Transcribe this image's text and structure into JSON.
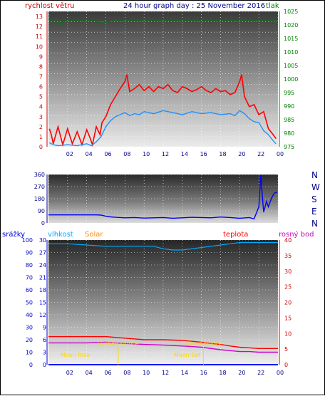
{
  "chart_data": [
    {
      "type": "line",
      "title": "24 hour graph day : 25 November 2016",
      "left_axis_label": "rychlost větru",
      "right_axis_label": "tlak",
      "x_ticks": [
        "02",
        "04",
        "06",
        "08",
        "10",
        "12",
        "14",
        "16",
        "18",
        "20",
        "22",
        "00"
      ],
      "left_ticks": [
        "0",
        "1",
        "2",
        "3",
        "4",
        "5",
        "6",
        "7",
        "8",
        "9",
        "10",
        "11",
        "12",
        "13"
      ],
      "right_ticks": [
        "975",
        "980",
        "985",
        "990",
        "995",
        "1000",
        "1005",
        "1010",
        "1015",
        "1020",
        "1025"
      ],
      "ylim_left": [
        0,
        13.5
      ],
      "ylim_right": [
        975,
        1025
      ],
      "colors": {
        "gust": "#ff0000",
        "avg": "#1e90ff",
        "pressure": "#008000",
        "left_axis": "#cc0000",
        "right_axis": "#008000",
        "title": "#00008b"
      },
      "series": [
        {
          "hour": [
            0.1,
            0.3,
            0.5,
            1.0,
            1.5,
            2.0,
            2.5,
            3.0,
            3.5,
            4.0,
            4.3,
            4.6,
            5.0,
            5.4,
            5.6,
            6.0,
            6.5,
            7.0,
            7.5,
            8.0,
            8.2,
            8.5,
            9.0,
            9.5,
            10.0,
            10.5,
            11.0,
            11.5,
            12.0,
            12.5,
            13.0,
            13.5,
            14.0,
            14.5,
            15.0,
            15.5,
            16.0,
            16.5,
            17.0,
            17.5,
            18.0,
            18.5,
            19.0,
            19.5,
            20.0,
            20.2,
            20.5,
            21.0,
            21.5,
            22.0,
            22.5,
            23.0,
            23.5,
            23.8
          ],
          "values": [
            1.8,
            1.2,
            0.3,
            2.0,
            0.2,
            1.8,
            0.3,
            1.5,
            0.2,
            1.7,
            1.0,
            0.2,
            2.0,
            1.2,
            2.4,
            3.0,
            4.2,
            5.0,
            5.8,
            6.5,
            7.2,
            5.5,
            5.8,
            6.2,
            5.6,
            6.0,
            5.5,
            6.0,
            5.8,
            6.2,
            5.6,
            5.4,
            6.0,
            5.8,
            5.5,
            5.7,
            6.0,
            5.6,
            5.4,
            5.8,
            5.5,
            5.6,
            5.2,
            5.4,
            6.5,
            7.2,
            5.0,
            4.0,
            4.2,
            3.2,
            3.5,
            1.8,
            1.2,
            0.8
          ]
        },
        {
          "hour": [
            0.1,
            0.5,
            1.0,
            2.0,
            3.0,
            4.0,
            4.5,
            5.0,
            5.5,
            6.0,
            6.5,
            7.0,
            7.5,
            8.0,
            8.5,
            9.0,
            9.5,
            10.0,
            11.0,
            12.0,
            13.0,
            14.0,
            15.0,
            16.0,
            17.0,
            18.0,
            19.0,
            19.5,
            20.0,
            20.5,
            21.0,
            21.5,
            22.0,
            22.5,
            23.0,
            23.5,
            23.8
          ],
          "values": [
            0.4,
            0.2,
            0.1,
            0.2,
            0.1,
            0.3,
            0.1,
            0.5,
            1.0,
            2.0,
            2.6,
            3.0,
            3.2,
            3.4,
            3.1,
            3.3,
            3.2,
            3.5,
            3.3,
            3.6,
            3.4,
            3.2,
            3.5,
            3.3,
            3.4,
            3.2,
            3.3,
            3.1,
            3.6,
            3.3,
            2.8,
            2.5,
            2.4,
            1.6,
            1.2,
            0.6,
            0.3
          ]
        },
        {
          "hour": [
            0,
            1.0,
            1.3,
            1.6,
            2.0,
            3.0,
            4.0,
            5.0,
            5.5,
            6.0,
            7.0,
            8.0,
            9.0,
            10.0,
            11.0,
            12.0,
            13.0,
            14.0,
            15.0,
            16.0,
            17.0,
            18.0,
            19.0,
            20.0,
            21.0,
            22.0,
            23.0,
            24.0
          ],
          "values": [
            1021.5,
            1021.5,
            1020.0,
            1021.5,
            1021.5,
            1021.5,
            1021.5,
            1021.5,
            1020.5,
            1021.0,
            1021.5,
            1021.5,
            1021.5,
            1021.5,
            1021.5,
            1021.5,
            1021.5,
            1021.5,
            1021.5,
            1021.5,
            1021.5,
            1021.5,
            1021.5,
            1021.5,
            1021.5,
            1021.5,
            1021.5,
            1021.5
          ]
        }
      ]
    },
    {
      "type": "line",
      "right_labels": [
        "N",
        "W",
        "S",
        "E",
        "N"
      ],
      "left_ticks": [
        "0",
        "90",
        "180",
        "270",
        "360"
      ],
      "ylim": [
        0,
        360
      ],
      "colors": {
        "direction": "#0000ff",
        "axis": "#00008b"
      },
      "series": [
        {
          "hour": [
            0.0,
            1.0,
            2.0,
            3.0,
            4.0,
            5.0,
            5.5,
            6.0,
            6.5,
            7.0,
            8.0,
            9.0,
            10.0,
            11.0,
            12.0,
            13.0,
            14.0,
            15.0,
            16.0,
            17.0,
            18.0,
            19.0,
            20.0,
            21.0,
            21.5,
            22.0,
            22.2,
            22.5,
            22.8,
            23.0,
            23.3,
            23.6,
            23.9
          ],
          "values": [
            60,
            60,
            60,
            60,
            60,
            60,
            58,
            50,
            45,
            42,
            38,
            40,
            36,
            38,
            40,
            35,
            38,
            42,
            40,
            38,
            44,
            40,
            35,
            40,
            30,
            120,
            355,
            80,
            160,
            120,
            180,
            220,
            230
          ]
        }
      ]
    },
    {
      "type": "line",
      "left_axis_label": "srážky",
      "humidity_label": "vlhkost",
      "solar_label": "Solar",
      "temperature_label": "teplota",
      "dew_label": "rosný bod",
      "left_ticks": [
        "0",
        "10",
        "20",
        "30",
        "40",
        "50",
        "60",
        "70",
        "80",
        "90",
        "100"
      ],
      "inner_ticks": [
        "0",
        "3",
        "6",
        "9",
        "12",
        "15",
        "18",
        "21",
        "24",
        "27",
        "30"
      ],
      "right_ticks": [
        "0",
        "5",
        "10",
        "15",
        "20",
        "25",
        "30",
        "35",
        "40"
      ],
      "x_ticks": [
        "02",
        "04",
        "06",
        "08",
        "10",
        "12",
        "14",
        "16",
        "18",
        "20",
        "22",
        "00"
      ],
      "ylim_left": [
        0,
        100
      ],
      "ylim_right": [
        0,
        40
      ],
      "annotations": [
        "východ slunce",
        "západ slunce",
        "Moon Rise",
        "Moon Set"
      ],
      "annotation_hours": [
        7.3,
        16.2,
        2.8,
        14.5
      ],
      "colors": {
        "rain": "#0000ff",
        "humidity": "#00aaff",
        "solar": "#ffd700",
        "temperature": "#ff0000",
        "dew": "#d000d0",
        "left_axis": "#0000cd",
        "right_axis": "#cc0000",
        "temp_label": "#ff0000",
        "dew_label": "#cc00cc",
        "solar_label": "#ff8c00",
        "humidity_label": "#00aaff"
      },
      "series": [
        {
          "hour": [
            0,
            2,
            4,
            6,
            8,
            10,
            11,
            12,
            13,
            14,
            15,
            16,
            17,
            18,
            19,
            20,
            21,
            22,
            23,
            24
          ],
          "values": [
            97,
            97,
            96,
            95,
            95,
            95,
            95,
            93,
            92,
            92,
            93,
            94,
            95,
            96,
            97,
            98,
            98,
            98,
            98,
            98
          ]
        },
        {
          "hour": [
            0,
            2,
            4,
            6,
            8,
            10,
            12,
            14,
            15,
            16,
            17,
            18,
            19,
            20,
            21,
            22,
            23,
            24
          ],
          "values": [
            9.0,
            9.0,
            9.0,
            9.0,
            8.5,
            8.0,
            8.0,
            7.8,
            7.5,
            7.2,
            6.8,
            6.5,
            6.0,
            5.6,
            5.4,
            5.2,
            5.2,
            5.2
          ]
        },
        {
          "hour": [
            0,
            2,
            4,
            6,
            8,
            10,
            12,
            14,
            15,
            16,
            17,
            18,
            19,
            20,
            21,
            22,
            23,
            24
          ],
          "values": [
            7.0,
            7.0,
            7.0,
            7.2,
            6.8,
            6.5,
            6.3,
            6.0,
            5.8,
            5.6,
            5.2,
            4.8,
            4.5,
            4.2,
            4.2,
            4.0,
            4.0,
            4.0
          ]
        },
        {
          "hour": [
            7.3,
            9,
            10,
            11,
            12,
            13,
            14,
            15,
            16.2
          ],
          "values": [
            0,
            0,
            0.1,
            0.1,
            0.2,
            0.2,
            0.1,
            0.1,
            0
          ]
        },
        {
          "hour": [
            0,
            24
          ],
          "values": [
            0,
            0
          ]
        }
      ]
    }
  ]
}
